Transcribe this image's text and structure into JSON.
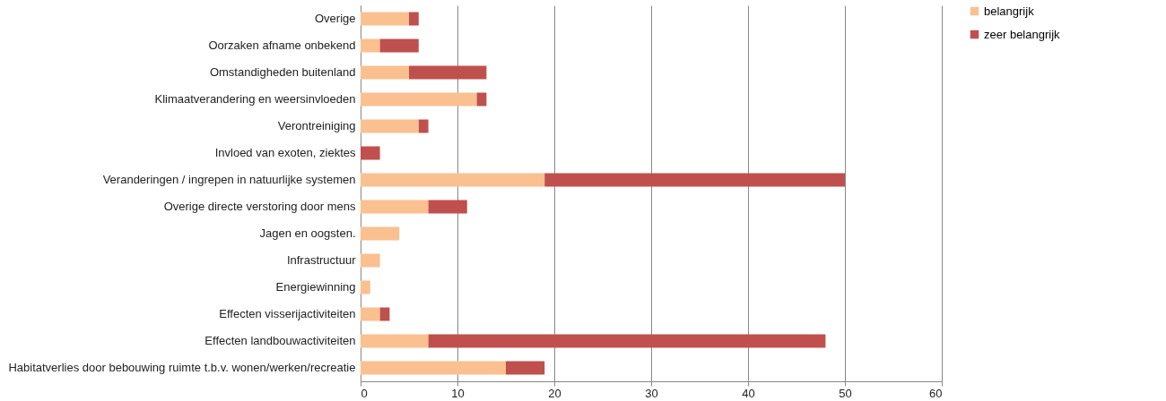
{
  "chart_data": {
    "type": "bar",
    "orientation": "horizontal",
    "stacked": true,
    "categories": [
      "Overige",
      "Oorzaken afname onbekend",
      "Omstandigheden buitenland",
      "Klimaatverandering en weersinvloeden",
      "Verontreiniging",
      "Invloed van exoten, ziektes",
      "Veranderingen / ingrepen in natuurlijke systemen",
      "Overige directe verstoring door mens",
      "Jagen en oogsten.",
      "Infrastructuur",
      "Energiewinning",
      "Effecten visserijactiviteiten",
      "Effecten landbouwactiviteiten",
      "Habitatverlies door bebouwing ruimte t.b.v. wonen/werken/recreatie"
    ],
    "series": [
      {
        "name": "belangrijk",
        "color": "#fac090",
        "values": [
          5,
          2,
          5,
          12,
          6,
          0,
          19,
          7,
          4,
          2,
          1,
          2,
          7,
          15
        ]
      },
      {
        "name": "zeer belangrijk",
        "color": "#c0504d",
        "values": [
          1,
          4,
          8,
          1,
          1,
          2,
          31,
          4,
          0,
          0,
          0,
          1,
          41,
          4
        ]
      }
    ],
    "xlim": [
      0,
      60
    ],
    "xticks": [
      0,
      10,
      20,
      30,
      40,
      50,
      60
    ],
    "grid": "x",
    "legend": "right"
  }
}
